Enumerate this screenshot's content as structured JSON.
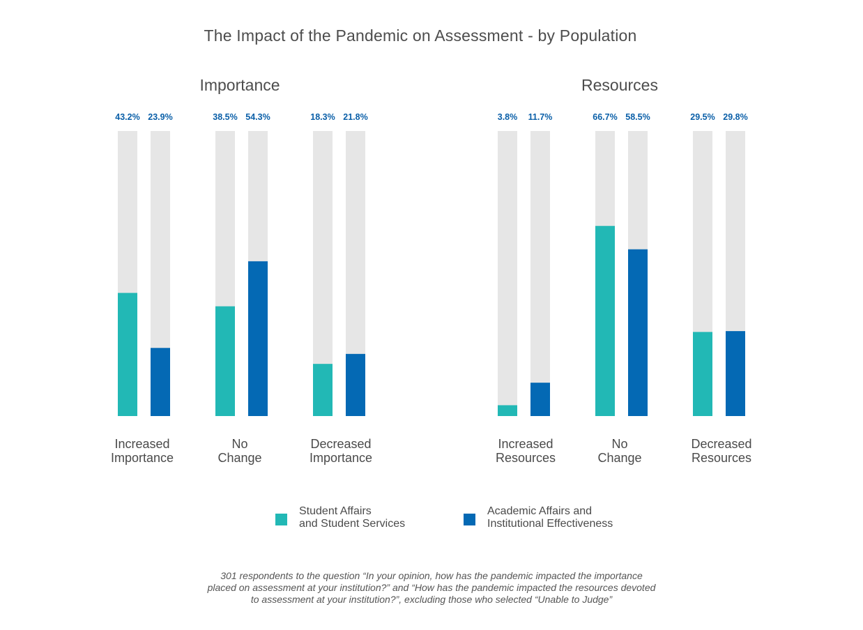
{
  "title": "The Impact of the Pandemic on Assessment - by Population",
  "colors": {
    "student": "#22b8b5",
    "academic": "#0469b4",
    "track": "#e6e6e6",
    "label": "#0a5fa8"
  },
  "legend": [
    {
      "key": "student",
      "lines": [
        "Student Affairs",
        "and Student Services"
      ]
    },
    {
      "key": "academic",
      "lines": [
        "Academic Affairs and",
        "Institutional Effectiveness"
      ]
    }
  ],
  "chart_data": [
    {
      "type": "bar",
      "title": "Importance",
      "ylim": [
        0,
        100
      ],
      "categories": [
        [
          "Increased",
          "Importance"
        ],
        [
          "No",
          "Change"
        ],
        [
          "Decreased",
          "Importance"
        ]
      ],
      "series": [
        {
          "name": "Student Affairs and Student Services",
          "key": "student",
          "values": [
            43.2,
            38.5,
            18.3
          ],
          "labels": [
            "43.2%",
            "38.5%",
            "18.3%"
          ]
        },
        {
          "name": "Academic Affairs and Institutional Effectiveness",
          "key": "academic",
          "values": [
            23.9,
            54.3,
            21.8
          ],
          "labels": [
            "23.9%",
            "54.3%",
            "21.8%"
          ]
        }
      ]
    },
    {
      "type": "bar",
      "title": "Resources",
      "ylim": [
        0,
        100
      ],
      "categories": [
        [
          "Increased",
          "Resources"
        ],
        [
          "No",
          "Change"
        ],
        [
          "Decreased",
          "Resources"
        ]
      ],
      "series": [
        {
          "name": "Student Affairs and Student Services",
          "key": "student",
          "values": [
            3.8,
            66.7,
            29.5
          ],
          "labels": [
            "3.8%",
            "66.7%",
            "29.5%"
          ]
        },
        {
          "name": "Academic Affairs and Institutional Effectiveness",
          "key": "academic",
          "values": [
            11.7,
            58.5,
            29.8
          ],
          "labels": [
            "11.7%",
            "58.5%",
            "29.8%"
          ]
        }
      ]
    }
  ],
  "footnote": [
    "301 respondents to the question “In your opinion, how has the pandemic impacted the importance",
    "placed on assessment at your institution?”  and “How has the pandemic impacted the resources devoted",
    "to assessment at your institution?”, excluding those who selected “Unable to Judge”"
  ]
}
